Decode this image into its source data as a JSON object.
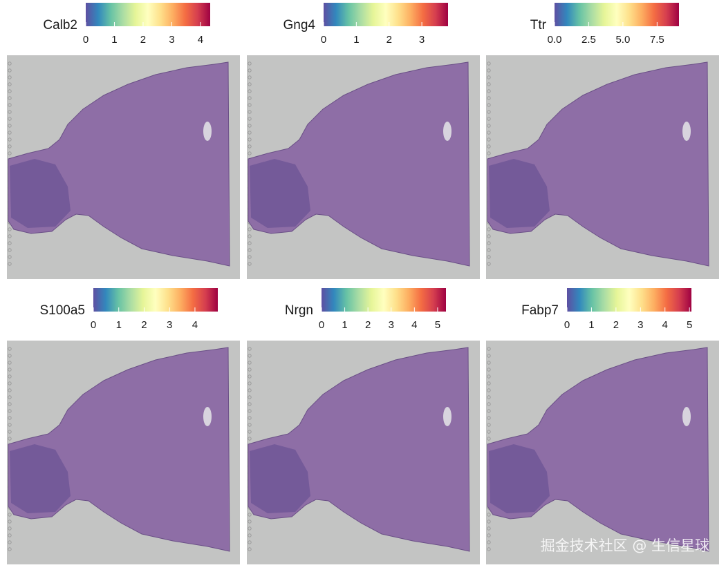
{
  "chart_data": [
    {
      "type": "spatial",
      "title": "Calb2",
      "clim": [
        0,
        4.34
      ],
      "cticks": [
        0,
        1,
        2,
        3,
        4
      ],
      "colors": [
        "#5e4fa2",
        "#3288bd",
        "#66c2a5",
        "#abdda4",
        "#e6f598",
        "#ffffbf",
        "#fee08b",
        "#fdae61",
        "#f46d43",
        "#d53e4f",
        "#9e0142"
      ]
    },
    {
      "type": "spatial",
      "title": "Gng4",
      "clim": [
        0,
        3.8
      ],
      "cticks": [
        0,
        1,
        2,
        3
      ],
      "colors": [
        "#5e4fa2",
        "#3288bd",
        "#66c2a5",
        "#abdda4",
        "#e6f598",
        "#ffffbf",
        "#fee08b",
        "#fdae61",
        "#f46d43",
        "#d53e4f",
        "#9e0142"
      ]
    },
    {
      "type": "spatial",
      "title": "Ttr",
      "clim": [
        0,
        9.1
      ],
      "cticks": [
        {
          "value": 0,
          "label": "0.0"
        },
        2.5,
        {
          "value": 5,
          "label": "5.0"
        },
        7.5
      ],
      "colors": [
        "#5e4fa2",
        "#3288bd",
        "#66c2a5",
        "#abdda4",
        "#e6f598",
        "#ffffbf",
        "#fee08b",
        "#fdae61",
        "#f46d43",
        "#d53e4f",
        "#9e0142"
      ]
    },
    {
      "type": "spatial",
      "title": "S100a5",
      "clim": [
        0,
        4.9
      ],
      "cticks": [
        0,
        1,
        2,
        3,
        4
      ],
      "colors": [
        "#5e4fa2",
        "#3288bd",
        "#66c2a5",
        "#abdda4",
        "#e6f598",
        "#ffffbf",
        "#fee08b",
        "#fdae61",
        "#f46d43",
        "#d53e4f",
        "#9e0142"
      ]
    },
    {
      "type": "spatial",
      "title": "Nrgn",
      "clim": [
        0,
        5.36
      ],
      "cticks": [
        0,
        1,
        2,
        3,
        4,
        5
      ],
      "colors": [
        "#5e4fa2",
        "#3288bd",
        "#66c2a5",
        "#abdda4",
        "#e6f598",
        "#ffffbf",
        "#fee08b",
        "#fdae61",
        "#f46d43",
        "#d53e4f",
        "#9e0142"
      ]
    },
    {
      "type": "spatial",
      "title": "Fabp7",
      "clim": [
        0,
        5.08
      ],
      "cticks": [
        0,
        1,
        2,
        3,
        4,
        5
      ],
      "colors": [
        "#5e4fa2",
        "#3288bd",
        "#66c2a5",
        "#abdda4",
        "#e6f598",
        "#ffffbf",
        "#fee08b",
        "#fdae61",
        "#f46d43",
        "#d53e4f",
        "#9e0142"
      ]
    }
  ],
  "watermark": "掘金技术社区 @ 生信星球"
}
